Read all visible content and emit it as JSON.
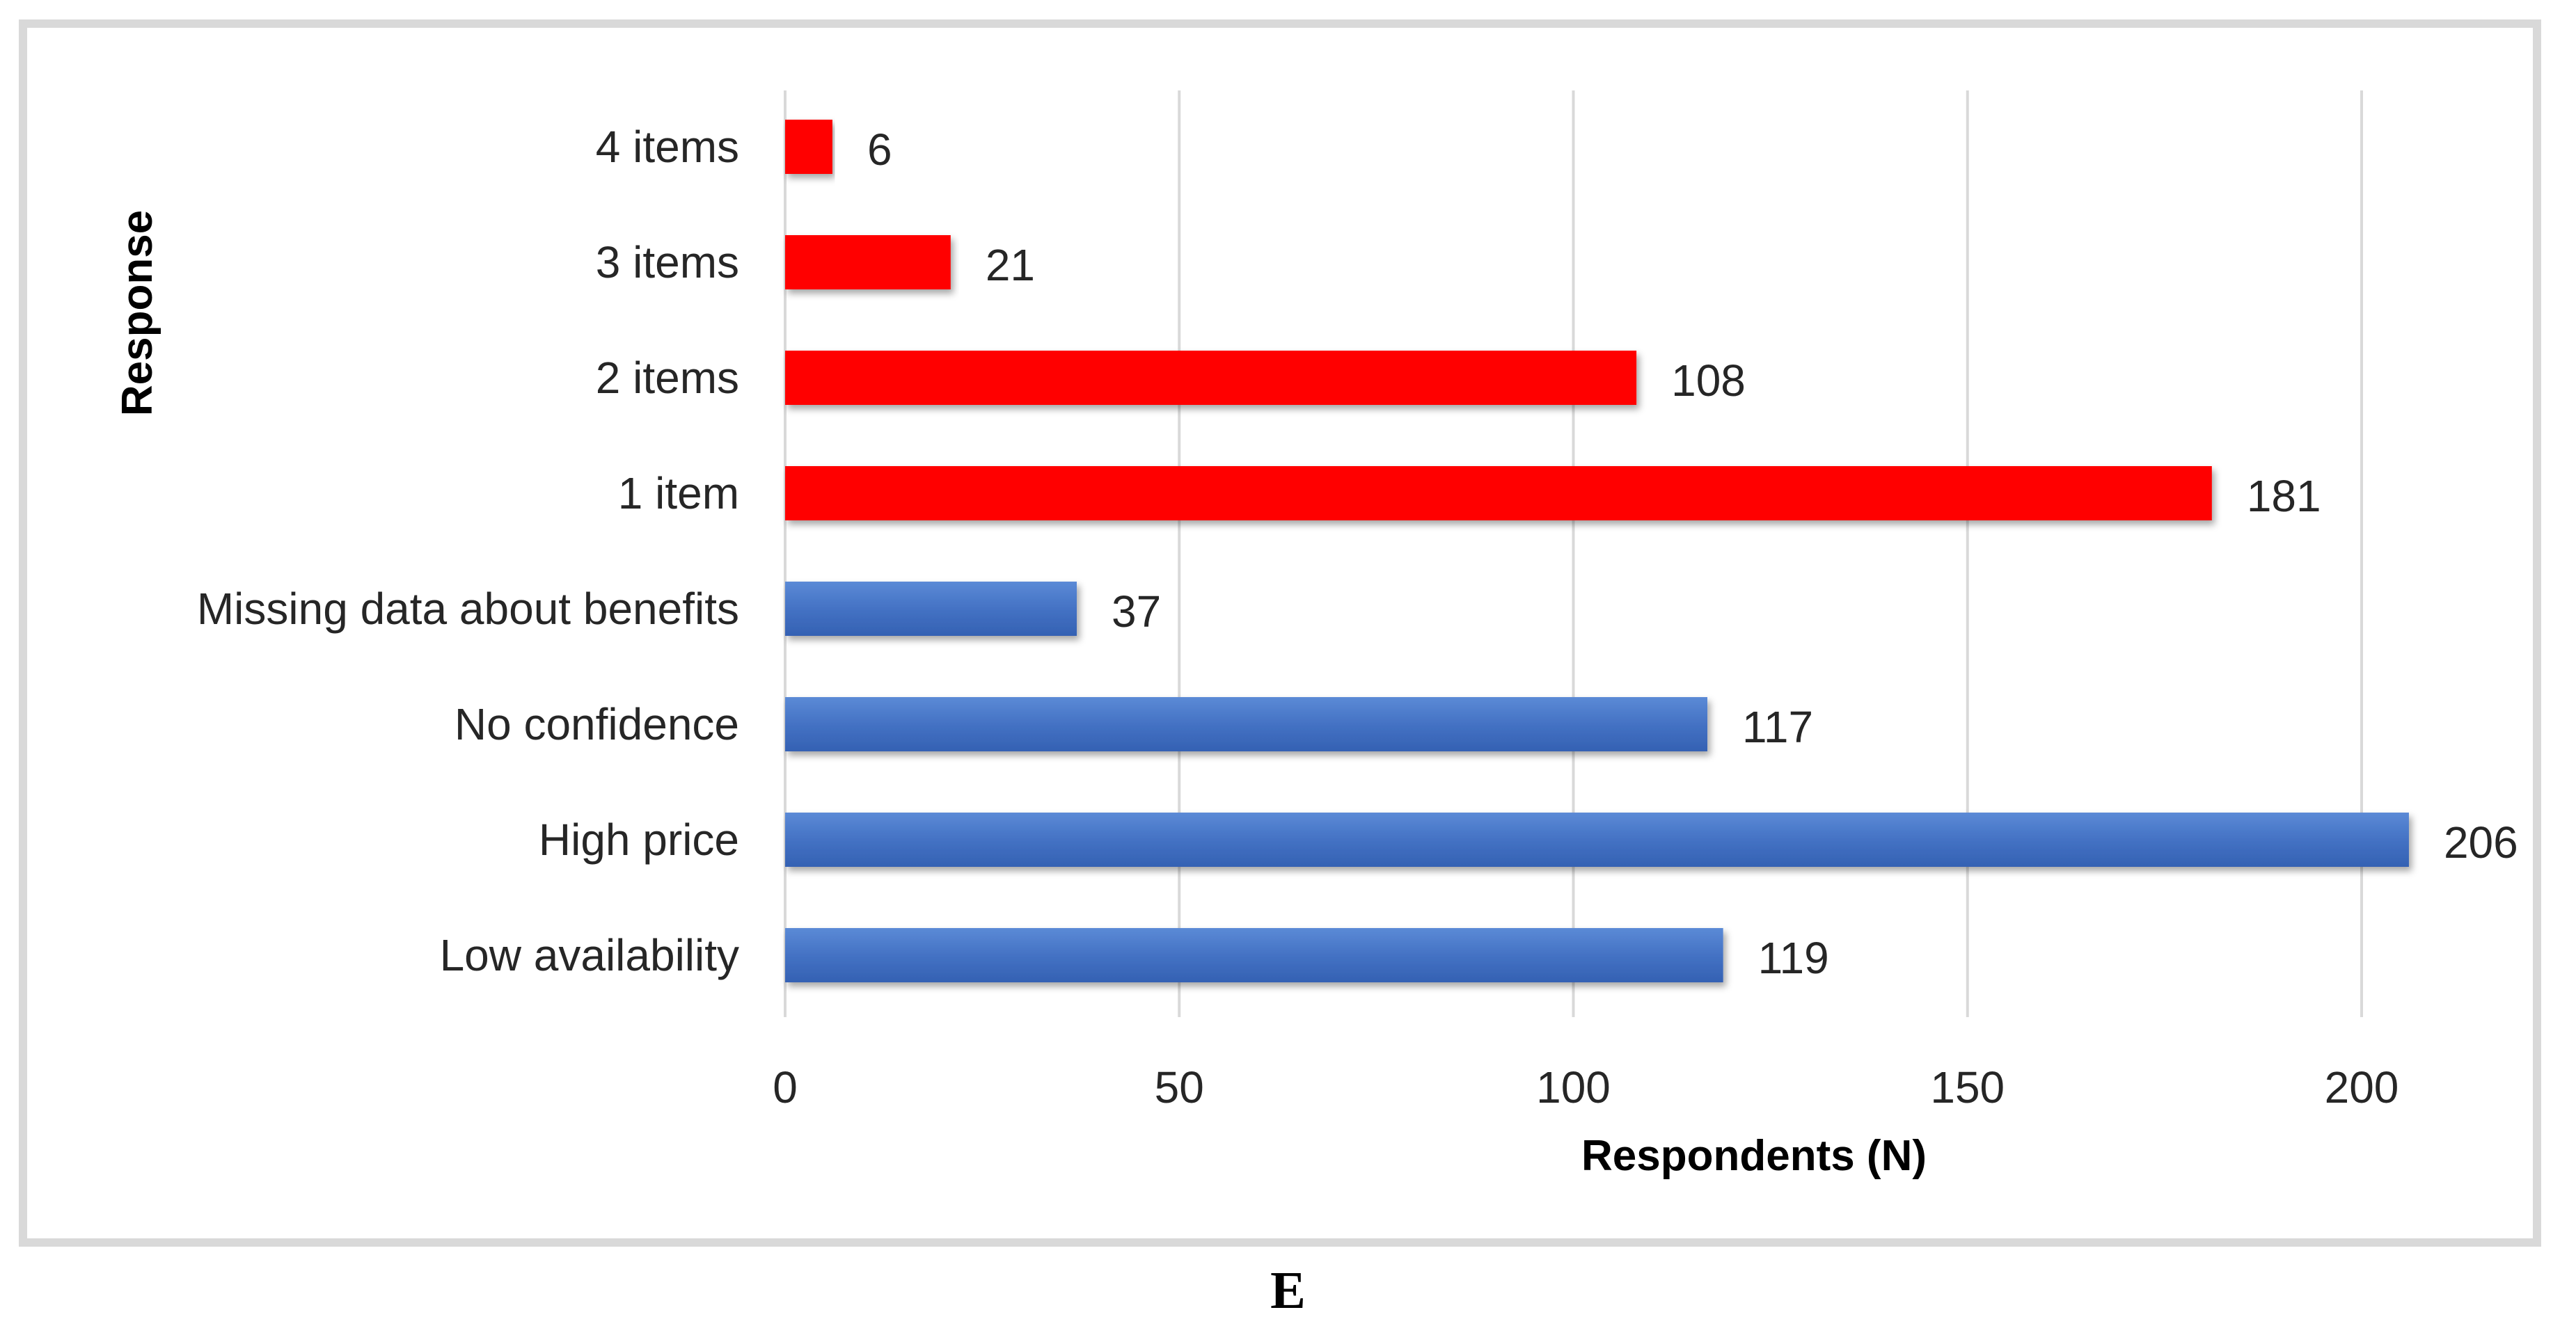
{
  "panel_label": "E",
  "chart_data": {
    "type": "bar",
    "orientation": "horizontal",
    "categories": [
      "4 items",
      "3 items",
      "2 items",
      "1 item",
      "Missing data about benefits",
      "No confidence",
      "High price",
      "Low availability"
    ],
    "values": [
      6,
      21,
      108,
      181,
      37,
      117,
      206,
      119
    ],
    "bar_colors": [
      "#ff0000",
      "#ff0000",
      "#ff0000",
      "#ff0000",
      "#4472c4",
      "#4472c4",
      "#4472c4",
      "#4472c4"
    ],
    "xlabel": "Respondents (N)",
    "ylabel": "Response",
    "xlim": [
      0,
      200
    ],
    "xticks": [
      0,
      50,
      100,
      150,
      200
    ],
    "grid": "vertical",
    "legend": "none"
  }
}
